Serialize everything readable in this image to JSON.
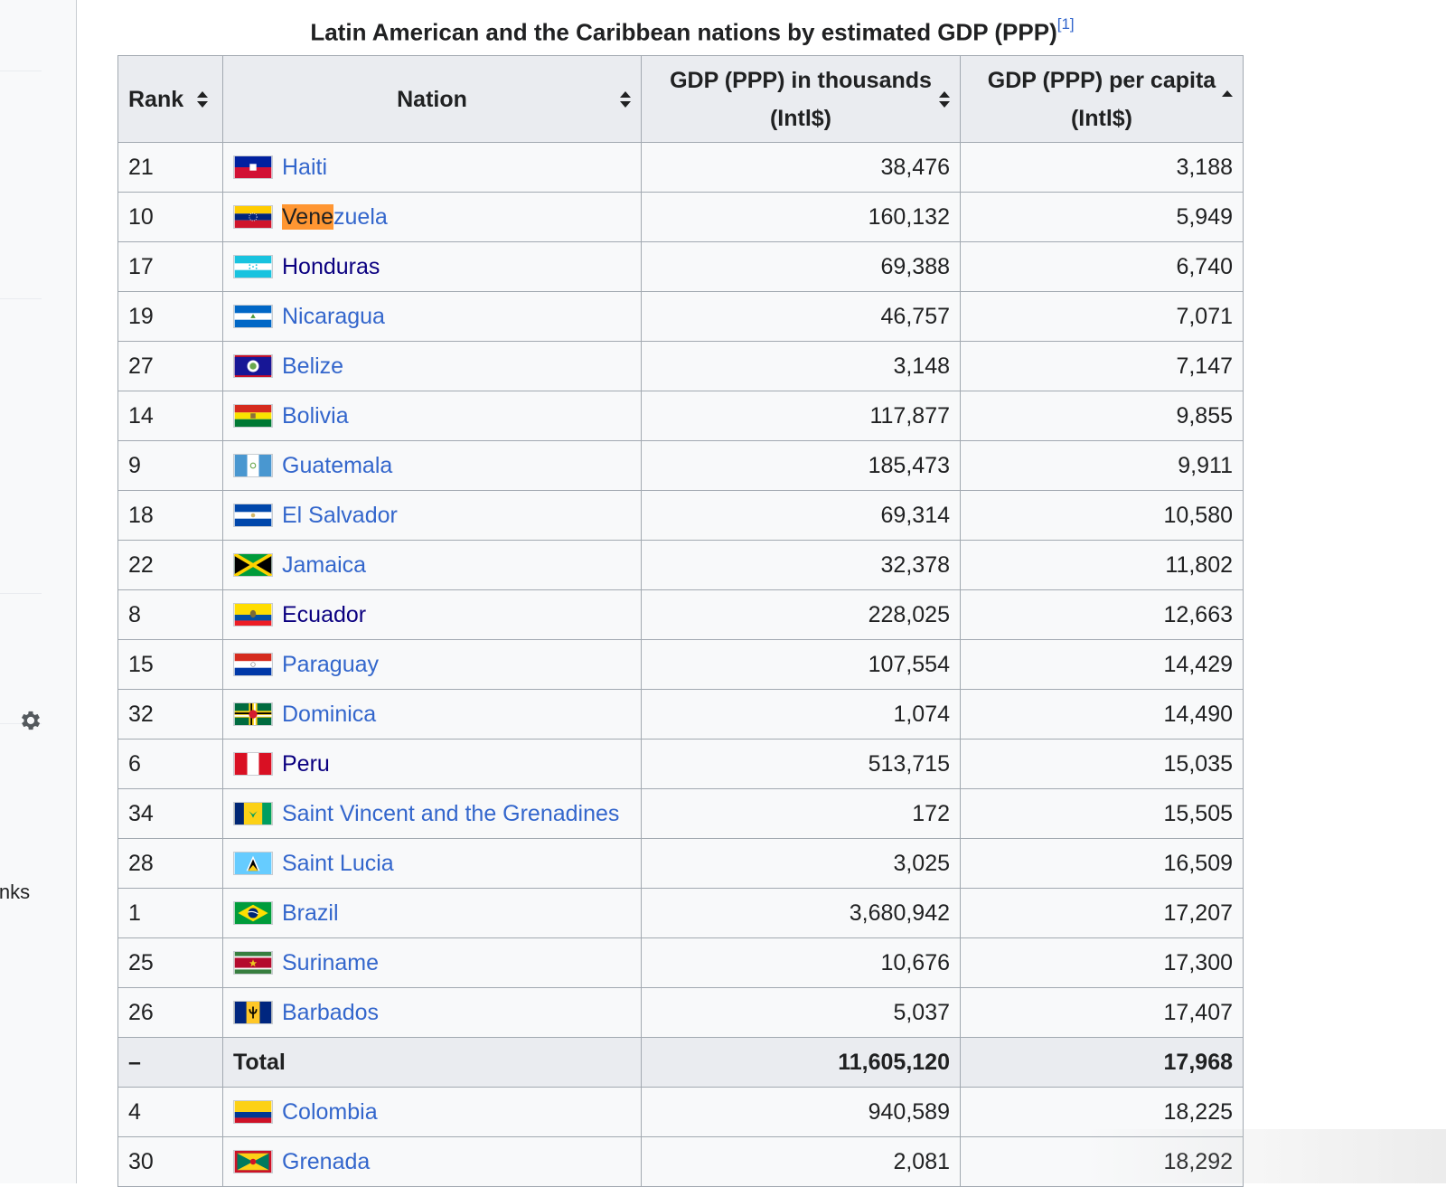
{
  "sidebar": {
    "partial_text": "inks"
  },
  "caption": {
    "title": "Latin American and the Caribbean nations by estimated GDP (PPP)",
    "ref": "[1]"
  },
  "headers": {
    "rank": "Rank",
    "nation": "Nation",
    "gdp_line1": "GDP (PPP) in thousands",
    "gdp_line2": "(Intl$)",
    "pc_line1": "GDP (PPP) per capita",
    "pc_line2": "(Intl$)"
  },
  "search_highlight": "Vene",
  "rows": [
    {
      "rank": "21",
      "nation": "Haiti",
      "gdp": "38,476",
      "pc": "3,188",
      "flag": "haiti-flag-icon"
    },
    {
      "rank": "10",
      "nation": "Venezuela",
      "gdp": "160,132",
      "pc": "5,949",
      "flag": "venezuela-flag-icon"
    },
    {
      "rank": "17",
      "nation": "Honduras",
      "gdp": "69,388",
      "pc": "6,740",
      "flag": "honduras-flag-icon"
    },
    {
      "rank": "19",
      "nation": "Nicaragua",
      "gdp": "46,757",
      "pc": "7,071",
      "flag": "nicaragua-flag-icon"
    },
    {
      "rank": "27",
      "nation": "Belize",
      "gdp": "3,148",
      "pc": "7,147",
      "flag": "belize-flag-icon"
    },
    {
      "rank": "14",
      "nation": "Bolivia",
      "gdp": "117,877",
      "pc": "9,855",
      "flag": "bolivia-flag-icon"
    },
    {
      "rank": "9",
      "nation": "Guatemala",
      "gdp": "185,473",
      "pc": "9,911",
      "flag": "guatemala-flag-icon"
    },
    {
      "rank": "18",
      "nation": "El Salvador",
      "gdp": "69,314",
      "pc": "10,580",
      "flag": "el-salvador-flag-icon"
    },
    {
      "rank": "22",
      "nation": "Jamaica",
      "gdp": "32,378",
      "pc": "11,802",
      "flag": "jamaica-flag-icon"
    },
    {
      "rank": "8",
      "nation": "Ecuador",
      "gdp": "228,025",
      "pc": "12,663",
      "flag": "ecuador-flag-icon"
    },
    {
      "rank": "15",
      "nation": "Paraguay",
      "gdp": "107,554",
      "pc": "14,429",
      "flag": "paraguay-flag-icon"
    },
    {
      "rank": "32",
      "nation": "Dominica",
      "gdp": "1,074",
      "pc": "14,490",
      "flag": "dominica-flag-icon"
    },
    {
      "rank": "6",
      "nation": "Peru",
      "gdp": "513,715",
      "pc": "15,035",
      "flag": "peru-flag-icon"
    },
    {
      "rank": "34",
      "nation": "Saint Vincent and the Grenadines",
      "gdp": "172",
      "pc": "15,505",
      "flag": "saint-vincent-flag-icon"
    },
    {
      "rank": "28",
      "nation": "Saint Lucia",
      "gdp": "3,025",
      "pc": "16,509",
      "flag": "saint-lucia-flag-icon"
    },
    {
      "rank": "1",
      "nation": "Brazil",
      "gdp": "3,680,942",
      "pc": "17,207",
      "flag": "brazil-flag-icon"
    },
    {
      "rank": "25",
      "nation": "Suriname",
      "gdp": "10,676",
      "pc": "17,300",
      "flag": "suriname-flag-icon"
    },
    {
      "rank": "26",
      "nation": "Barbados",
      "gdp": "5,037",
      "pc": "17,407",
      "flag": "barbados-flag-icon"
    },
    {
      "rank": "–",
      "nation": "Total",
      "gdp": "11,605,120",
      "pc": "17,968",
      "total": true
    },
    {
      "rank": "4",
      "nation": "Colombia",
      "gdp": "940,589",
      "pc": "18,225",
      "flag": "colombia-flag-icon"
    },
    {
      "rank": "30",
      "nation": "Grenada",
      "gdp": "2,081",
      "pc": "18,292",
      "flag": "grenada-flag-icon"
    }
  ]
}
